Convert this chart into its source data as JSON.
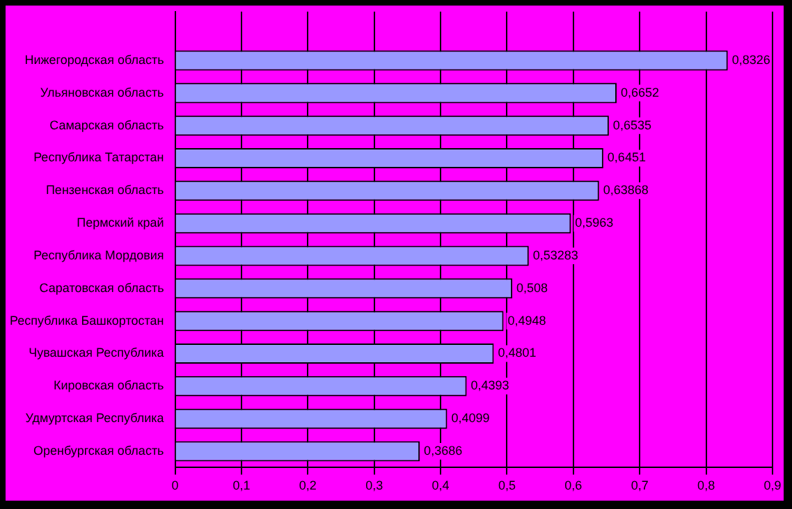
{
  "chart_data": {
    "type": "bar",
    "orientation": "horizontal",
    "categories": [
      null,
      "Нижегородская область",
      "Ульяновская область",
      "Самарская область",
      "Республика Татарстан",
      "Пензенская область",
      "Пермский край",
      "Республика Мордовия",
      "Саратовская область",
      "Республика Башкортостан",
      "Чувашская Республика",
      "Кировская область",
      "Удмуртская Республика",
      "Оренбургская область"
    ],
    "values": [
      null,
      0.8326,
      0.6652,
      0.6535,
      0.6451,
      0.63868,
      0.5963,
      0.53283,
      0.508,
      0.4948,
      0.4801,
      0.4393,
      0.4099,
      0.3686
    ],
    "value_labels": [
      null,
      "0,8326",
      "0,6652",
      "0,6535",
      "0,6451",
      "0,63868",
      "0,5963",
      "0,53283",
      "0,508",
      "0,4948",
      "0,4801",
      "0,4393",
      "0,4099",
      "0,3686"
    ],
    "color": "#9999ff",
    "xlim": [
      0,
      0.9
    ],
    "xticks": [
      0,
      {
        "value": 0.1,
        "label": "0,1"
      },
      {
        "value": 0.2,
        "label": "0,2"
      },
      {
        "value": 0.3,
        "label": "0,3"
      },
      {
        "value": 0.4,
        "label": "0,4"
      },
      {
        "value": 0.5,
        "label": "0,5"
      },
      {
        "value": 0.6,
        "label": "0,6"
      },
      {
        "value": 0.7,
        "label": "0,7"
      },
      {
        "value": 0.8,
        "label": "0,8"
      },
      {
        "value": 0.9,
        "label": "0,9"
      }
    ],
    "grid": "x",
    "legend": false
  }
}
